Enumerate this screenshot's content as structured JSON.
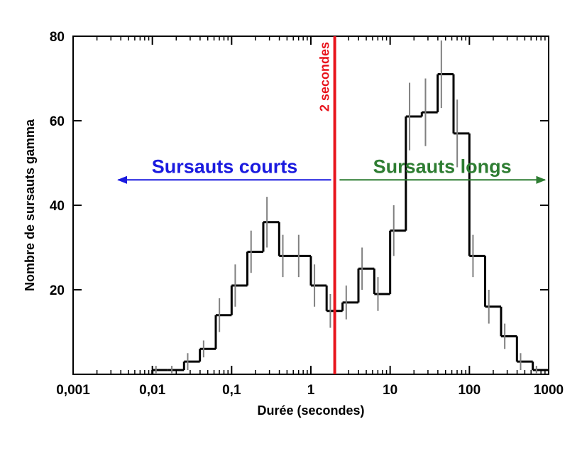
{
  "chart_data": {
    "type": "histogram",
    "xlabel": "Durée (secondes)",
    "ylabel": "Nombre de sursauts gamma",
    "xscale": "log",
    "xlim": [
      0.001,
      1000
    ],
    "ylim": [
      0,
      80
    ],
    "xticks": [
      {
        "value": 0.001,
        "label": "0,001"
      },
      {
        "value": 0.01,
        "label": "0,01"
      },
      {
        "value": 0.1,
        "label": "0,1"
      },
      1,
      10,
      100,
      1000
    ],
    "yticks": [
      20,
      40,
      60,
      80
    ],
    "color": "#000000",
    "error_color": "#808080",
    "bins": [
      0.01,
      0.0158,
      0.0251,
      0.0398,
      0.0631,
      0.1,
      0.158,
      0.251,
      0.398,
      0.631,
      1,
      1.58,
      2.51,
      3.98,
      6.31,
      10,
      15.8,
      25.1,
      39.8,
      63.1,
      100,
      158,
      251,
      398,
      631,
      1000
    ],
    "values": [
      1,
      1,
      3,
      6,
      14,
      21,
      29,
      36,
      28,
      28,
      21,
      15,
      17,
      25,
      19,
      34,
      61,
      62,
      71,
      57,
      28,
      16,
      9,
      3,
      1
    ],
    "errors": [
      1,
      1,
      2,
      2,
      4,
      5,
      5,
      6,
      5,
      5,
      5,
      4,
      4,
      5,
      4,
      6,
      8,
      8,
      8,
      8,
      5,
      4,
      3,
      2,
      1
    ],
    "vline": {
      "x": 2,
      "label": "2 secondes",
      "color": "#e8141c"
    },
    "arrows": [
      {
        "text": "Sursauts courts",
        "color": "#1a1adf",
        "y": 46,
        "x": [
          1.8,
          0.0037
        ]
      },
      {
        "text": "Sursauts longs",
        "color": "#2e7d32",
        "y": 46,
        "x": [
          2.3,
          900
        ]
      }
    ]
  }
}
